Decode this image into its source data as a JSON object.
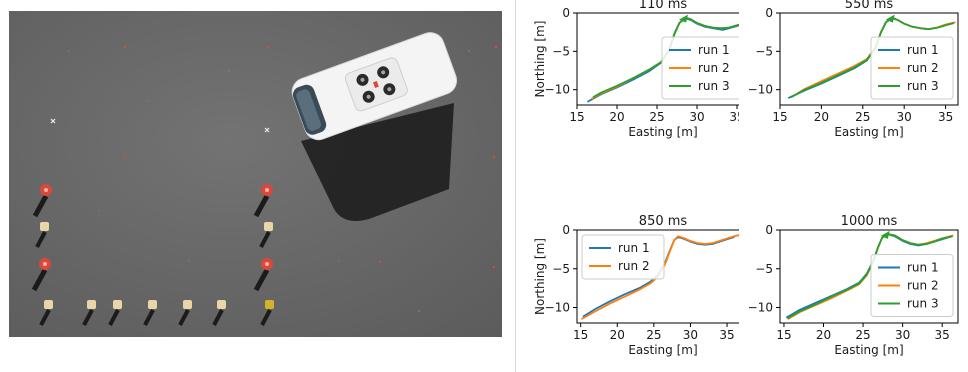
{
  "photo": {
    "subject": "aerial view of a white van next to a square of traffic cones on asphalt"
  },
  "colors": {
    "run1": "#1f77b4",
    "run2": "#ff7f0e",
    "run3": "#2ca02c",
    "asphalt": "#6b6b6b",
    "van": "#f4f4f4",
    "cone_red": "#d9483b",
    "cone_cream": "#e8d6a8",
    "cone_yellow": "#d4b22a"
  },
  "chart_data": [
    {
      "type": "line",
      "title": "110 ms",
      "xlabel": "Easting [m]",
      "ylabel": "Northing [m]",
      "xlim": [
        15,
        36.5
      ],
      "ylim": [
        -12,
        0
      ],
      "xticks": [
        15,
        20,
        25,
        30,
        35
      ],
      "yticks": [
        0,
        -5,
        -10
      ],
      "grid": false,
      "legend": "center-right",
      "series": [
        {
          "name": "run 1",
          "color": "#1f77b4",
          "x": [
            16.3,
            18,
            20,
            22,
            24,
            25.5,
            26.5,
            27.2,
            27.8,
            28.5,
            29.2,
            30,
            31,
            32,
            33.2,
            34,
            35,
            35.5
          ],
          "y": [
            -11.6,
            -10.6,
            -9.7,
            -8.7,
            -7.6,
            -6.5,
            -4.8,
            -2.6,
            -1.3,
            -0.7,
            -0.9,
            -1.4,
            -1.8,
            -2.0,
            -2.2,
            -2.0,
            -1.7,
            -1.5
          ]
        },
        {
          "name": "run 2",
          "color": "#ff7f0e",
          "x": [
            16.8,
            18,
            20,
            22,
            24,
            25.5,
            26.5,
            27.2,
            27.8,
            28.5,
            29.2,
            30,
            31,
            32,
            33,
            34,
            35,
            35.8
          ],
          "y": [
            -11.2,
            -10.5,
            -9.6,
            -8.5,
            -7.4,
            -6.4,
            -4.9,
            -2.7,
            -1.3,
            -0.6,
            -0.8,
            -1.3,
            -1.7,
            -1.9,
            -2.0,
            -1.9,
            -1.6,
            -1.4
          ]
        },
        {
          "name": "run 3",
          "color": "#2ca02c",
          "x": [
            17,
            18,
            20,
            22,
            24,
            25.5,
            26.5,
            27.2,
            27.8,
            28.5,
            29.2,
            30,
            31,
            32,
            33,
            34,
            35,
            35.6
          ],
          "y": [
            -11.0,
            -10.4,
            -9.5,
            -8.5,
            -7.4,
            -6.4,
            -4.9,
            -2.7,
            -1.3,
            -0.6,
            -0.8,
            -1.3,
            -1.7,
            -1.9,
            -2.0,
            -1.9,
            -1.6,
            -1.5
          ]
        }
      ]
    },
    {
      "type": "line",
      "title": "550 ms",
      "xlabel": "Easting [m]",
      "ylabel": "",
      "xlim": [
        15,
        36.5
      ],
      "ylim": [
        -12,
        0
      ],
      "xticks": [
        15,
        20,
        25,
        30,
        35
      ],
      "yticks": [
        0,
        -5,
        -10
      ],
      "grid": false,
      "legend": "center-right",
      "series": [
        {
          "name": "run 1",
          "color": "#1f77b4",
          "x": [
            16,
            18,
            20,
            22,
            24,
            25.5,
            26.5,
            27.2,
            27.8,
            28.5,
            29.2,
            30,
            31,
            32,
            33,
            34,
            35,
            36
          ],
          "y": [
            -11.1,
            -10.1,
            -9.2,
            -8.2,
            -7.2,
            -6.2,
            -4.6,
            -2.5,
            -1.2,
            -0.7,
            -0.9,
            -1.4,
            -1.8,
            -2.0,
            -2.1,
            -1.9,
            -1.6,
            -1.3
          ]
        },
        {
          "name": "run 2",
          "color": "#ff7f0e",
          "x": [
            16.5,
            18,
            20,
            22,
            24,
            25.5,
            26.5,
            27.2,
            27.8,
            28.5,
            29.2,
            30,
            31,
            32,
            33,
            34,
            35,
            36.2
          ],
          "y": [
            -10.9,
            -9.9,
            -8.9,
            -7.9,
            -6.9,
            -6.0,
            -4.5,
            -2.5,
            -1.2,
            -0.6,
            -0.9,
            -1.4,
            -1.8,
            -2.0,
            -2.1,
            -1.9,
            -1.5,
            -1.2
          ]
        },
        {
          "name": "run 3",
          "color": "#2ca02c",
          "x": [
            16.3,
            18,
            20,
            22,
            24,
            25.5,
            26.5,
            27.2,
            27.8,
            28.5,
            29.2,
            30,
            31,
            32,
            33,
            34,
            35,
            36
          ],
          "y": [
            -11.0,
            -10.0,
            -9.1,
            -8.1,
            -7.1,
            -6.1,
            -4.6,
            -2.5,
            -1.2,
            -0.6,
            -0.9,
            -1.4,
            -1.8,
            -2.0,
            -2.1,
            -1.9,
            -1.6,
            -1.3
          ]
        }
      ]
    },
    {
      "type": "line",
      "title": "850 ms",
      "xlabel": "Easting [m]",
      "ylabel": "Northing [m]",
      "xlim": [
        14.5,
        38
      ],
      "ylim": [
        -12,
        0
      ],
      "xticks": [
        15,
        20,
        25,
        30,
        35
      ],
      "yticks": [
        0,
        -5,
        -10
      ],
      "grid": false,
      "legend": "upper-left",
      "series": [
        {
          "name": "run 1",
          "color": "#1f77b4",
          "x": [
            15.3,
            17,
            19,
            21,
            23,
            24.5,
            25.5,
            26.5,
            27.2,
            27.8,
            28.3,
            29,
            30,
            31,
            32,
            33,
            34,
            35,
            36
          ],
          "y": [
            -11.2,
            -10.2,
            -9.2,
            -8.3,
            -7.5,
            -6.7,
            -5.9,
            -4.3,
            -2.6,
            -1.3,
            -0.9,
            -1.1,
            -1.5,
            -1.8,
            -1.9,
            -1.8,
            -1.5,
            -1.2,
            -0.9
          ]
        },
        {
          "name": "run 2",
          "color": "#ff7f0e",
          "x": [
            15.1,
            17,
            19,
            21,
            23,
            24.5,
            25.5,
            26.5,
            27.2,
            27.8,
            28.3,
            29,
            30,
            31,
            32,
            33,
            34,
            35,
            36,
            37.3
          ],
          "y": [
            -11.5,
            -10.5,
            -9.5,
            -8.6,
            -7.7,
            -6.9,
            -6.1,
            -4.5,
            -2.7,
            -1.3,
            -0.8,
            -1.0,
            -1.4,
            -1.7,
            -1.8,
            -1.7,
            -1.4,
            -1.1,
            -0.8,
            -0.5
          ]
        }
      ]
    },
    {
      "type": "line",
      "title": "1000 ms",
      "xlabel": "Easting [m]",
      "ylabel": "",
      "xlim": [
        14.5,
        37
      ],
      "ylim": [
        -12,
        0
      ],
      "xticks": [
        15,
        20,
        25,
        30,
        35
      ],
      "yticks": [
        0,
        -5,
        -10
      ],
      "grid": false,
      "legend": "center-right",
      "series": [
        {
          "name": "run 1",
          "color": "#1f77b4",
          "x": [
            15.3,
            17,
            19,
            21,
            23,
            24.5,
            25.5,
            26.3,
            26.9,
            27.4,
            28,
            29,
            30,
            31,
            32,
            33,
            34,
            35,
            36.3
          ],
          "y": [
            -11.3,
            -10.3,
            -9.4,
            -8.5,
            -7.6,
            -6.8,
            -5.6,
            -3.9,
            -2.2,
            -1.0,
            -0.5,
            -0.8,
            -1.4,
            -1.8,
            -2.0,
            -1.8,
            -1.5,
            -1.2,
            -0.8
          ]
        },
        {
          "name": "run 2",
          "color": "#ff7f0e",
          "x": [
            15.5,
            17,
            19,
            21,
            23,
            24.5,
            25.5,
            26.3,
            26.9,
            27.4,
            28,
            29,
            30,
            31,
            32,
            33,
            34,
            35,
            36.4
          ],
          "y": [
            -11.5,
            -10.6,
            -9.7,
            -8.8,
            -7.8,
            -7.0,
            -5.8,
            -4.0,
            -2.3,
            -1.0,
            -0.5,
            -0.7,
            -1.3,
            -1.7,
            -1.9,
            -1.7,
            -1.4,
            -1.1,
            -0.7
          ]
        },
        {
          "name": "run 3",
          "color": "#2ca02c",
          "x": [
            15.4,
            17,
            19,
            21,
            23,
            24.5,
            25.5,
            26.3,
            26.9,
            27.4,
            28,
            29,
            30,
            31,
            32,
            33,
            34,
            35,
            36.3
          ],
          "y": [
            -11.4,
            -10.5,
            -9.6,
            -8.6,
            -7.7,
            -6.9,
            -5.7,
            -4.0,
            -2.2,
            -1.0,
            -0.5,
            -0.7,
            -1.3,
            -1.7,
            -1.9,
            -1.8,
            -1.5,
            -1.1,
            -0.8
          ]
        }
      ]
    }
  ]
}
